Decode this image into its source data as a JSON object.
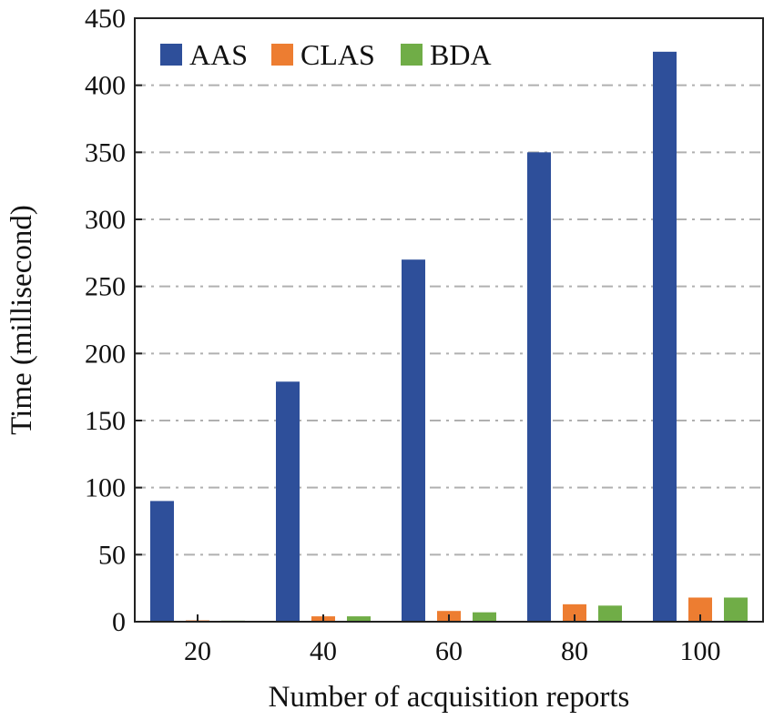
{
  "chart_data": {
    "type": "bar",
    "title": "",
    "xlabel": "Number of acquisition reports",
    "ylabel": "Time (millisecond)",
    "categories": [
      "20",
      "40",
      "60",
      "80",
      "100"
    ],
    "ylim": [
      0,
      450
    ],
    "yticks": [
      0,
      50,
      100,
      150,
      200,
      250,
      300,
      350,
      400,
      450
    ],
    "grid": "horizontal dash-dot",
    "legend_position": "top-left",
    "series": [
      {
        "name": "AAS",
        "color": "#2e4f9a",
        "values": [
          90,
          179,
          270,
          350,
          425
        ]
      },
      {
        "name": "CLAS",
        "color": "#ed7d31",
        "values": [
          1,
          4,
          8,
          13,
          18
        ]
      },
      {
        "name": "BDA",
        "color": "#70ad47",
        "values": [
          0.8,
          4,
          7,
          12,
          18
        ]
      }
    ]
  }
}
